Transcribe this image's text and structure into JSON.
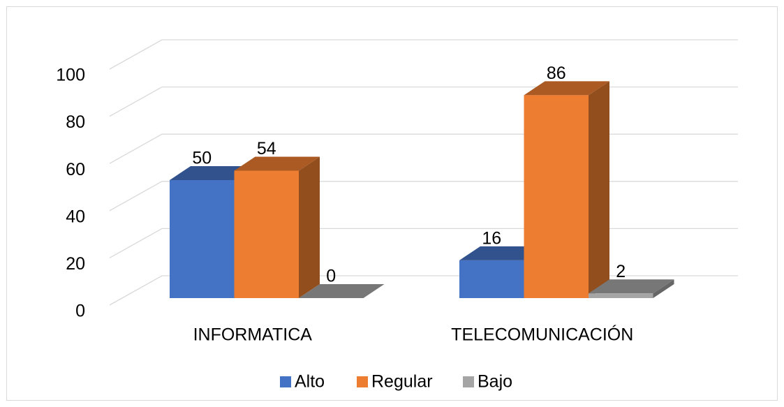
{
  "chart_data": {
    "type": "bar3d",
    "categories": [
      "INFORMATICA",
      "TELECOMUNICACIÓN"
    ],
    "series": [
      {
        "name": "Alto",
        "color": "#4472c4",
        "values": [
          50,
          16
        ]
      },
      {
        "name": "Regular",
        "color": "#ed7d31",
        "values": [
          54,
          86
        ]
      },
      {
        "name": "Bajo",
        "color": "#a5a5a5",
        "values": [
          0,
          2
        ]
      }
    ],
    "ylim": [
      0,
      100
    ],
    "yticks": [
      0,
      20,
      40,
      60,
      80,
      100
    ],
    "grid": true,
    "legend": "bottom"
  }
}
